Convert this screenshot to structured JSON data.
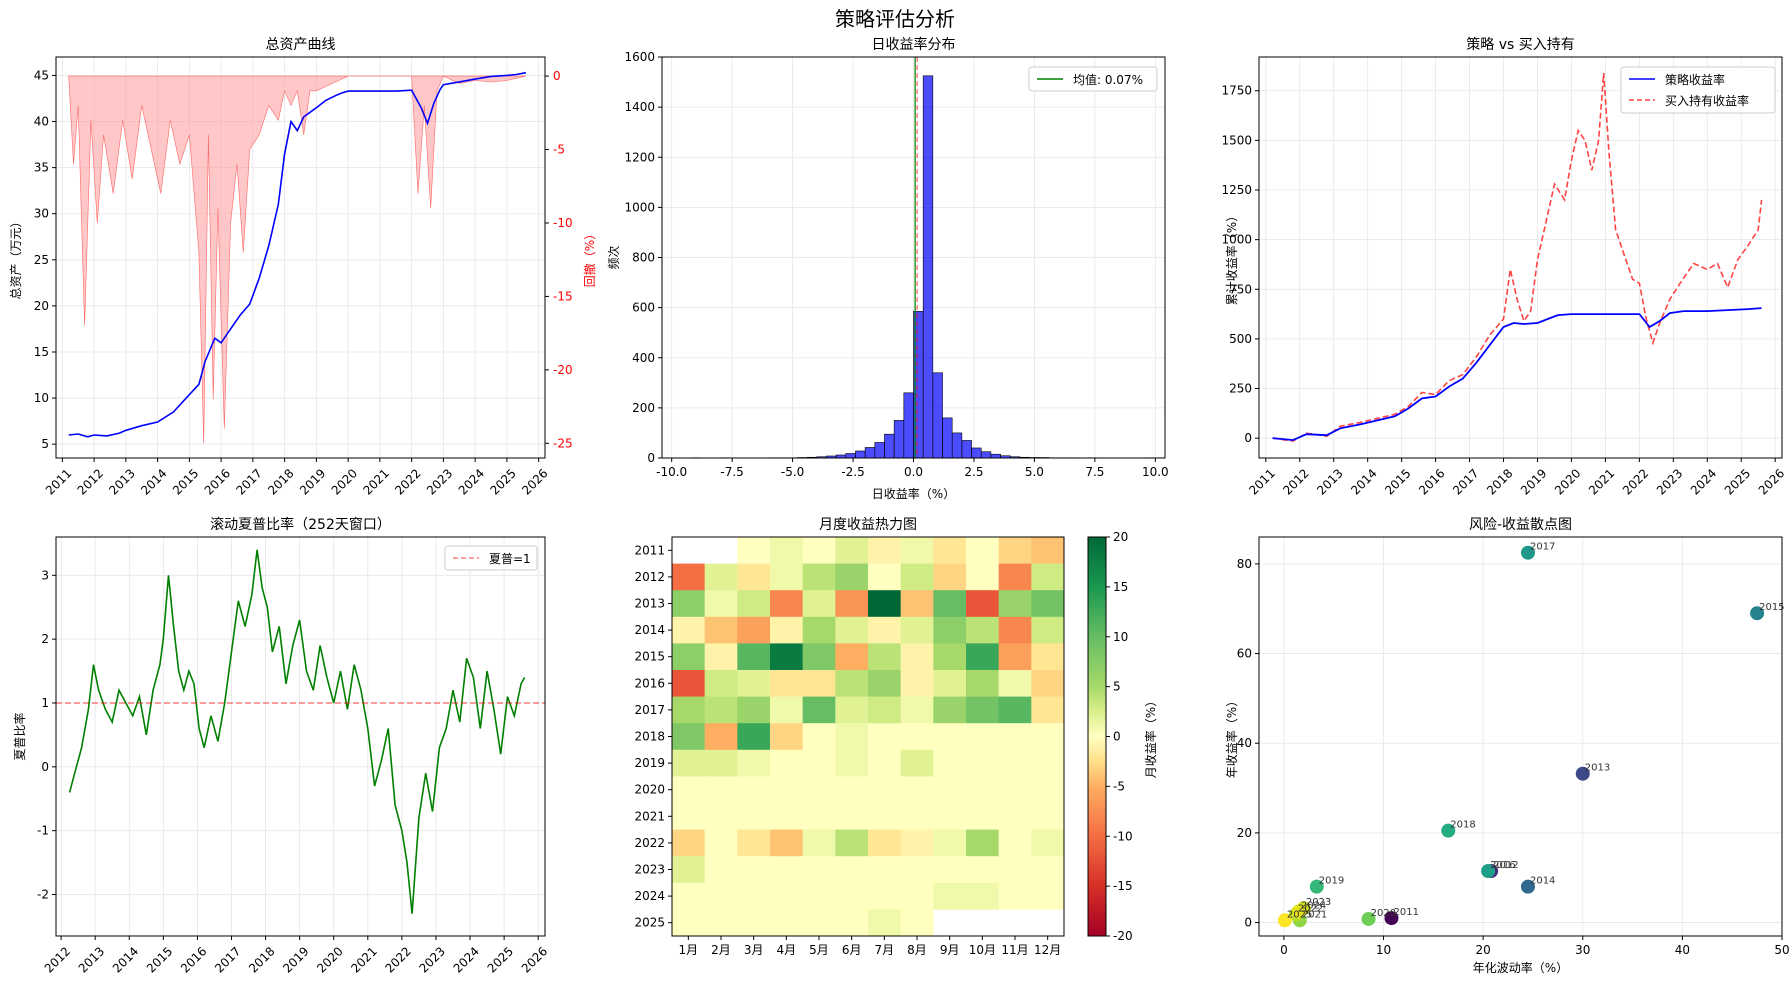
{
  "figure_title": "策略评估分析",
  "chart_data": [
    {
      "id": "equity",
      "type": "line",
      "title": "总资产曲线",
      "ylabel": "总资产（万元）",
      "y2label": "回撤（%）",
      "ylim": [
        3.5,
        47
      ],
      "y2lim": [
        -26,
        1.3
      ],
      "xlim": [
        2010.8,
        2026.2
      ],
      "xticks": [
        "2011",
        "2012",
        "2013",
        "2014",
        "2015",
        "2016",
        "2017",
        "2018",
        "2019",
        "2020",
        "2021",
        "2022",
        "2023",
        "2024",
        "2025",
        "2026"
      ],
      "yticks": [
        5,
        10,
        15,
        20,
        25,
        30,
        35,
        40,
        45
      ],
      "y2ticks": [
        0,
        -5,
        -10,
        -15,
        -20,
        -25
      ],
      "series": [
        {
          "color": "#0000ff",
          "x": [
            2011.2,
            2011.5,
            2011.8,
            2012.0,
            2012.4,
            2012.8,
            2013.0,
            2013.5,
            2014.0,
            2014.5,
            2014.9,
            2015.3,
            2015.5,
            2015.8,
            2016.0,
            2016.3,
            2016.6,
            2016.9,
            2017.2,
            2017.5,
            2017.8,
            2018.0,
            2018.2,
            2018.4,
            2018.6,
            2018.8,
            2019.0,
            2019.3,
            2019.6,
            2019.8,
            2020.0,
            2020.5,
            2021.0,
            2021.5,
            2022.0,
            2022.3,
            2022.5,
            2022.7,
            2022.9,
            2023.0,
            2023.5,
            2024.0,
            2024.5,
            2025.0,
            2025.3,
            2025.6
          ],
          "y": [
            6.0,
            6.1,
            5.8,
            6.0,
            5.9,
            6.2,
            6.5,
            7.0,
            7.4,
            8.5,
            10.0,
            11.5,
            14.0,
            16.5,
            16.0,
            17.5,
            19.0,
            20.2,
            23.0,
            26.5,
            31.0,
            36.5,
            40.0,
            39.0,
            40.5,
            41.0,
            41.5,
            42.3,
            42.8,
            43.1,
            43.3,
            43.3,
            43.3,
            43.3,
            43.4,
            41.5,
            39.8,
            42.0,
            43.5,
            44.0,
            44.3,
            44.6,
            44.9,
            45.0,
            45.1,
            45.3
          ]
        }
      ],
      "drawdown": {
        "color": "#ff9999",
        "x": [
          2011.2,
          2011.35,
          2011.5,
          2011.7,
          2011.9,
          2012.1,
          2012.3,
          2012.6,
          2012.9,
          2013.2,
          2013.5,
          2013.8,
          2014.1,
          2014.4,
          2014.7,
          2015.0,
          2015.3,
          2015.45,
          2015.6,
          2015.75,
          2015.9,
          2016.1,
          2016.3,
          2016.5,
          2016.7,
          2016.9,
          2017.2,
          2017.5,
          2017.8,
          2018.0,
          2018.2,
          2018.4,
          2018.6,
          2018.8,
          2019.0,
          2019.5,
          2020.0,
          2020.5,
          2021.0,
          2021.5,
          2022.0,
          2022.2,
          2022.4,
          2022.6,
          2022.8,
          2023.0,
          2023.5,
          2024.0,
          2024.5,
          2025.0,
          2025.6
        ],
        "y": [
          0,
          -6,
          -2,
          -17,
          -3,
          -10,
          -4,
          -8,
          -3,
          -7,
          -2,
          -5,
          -8,
          -3,
          -6,
          -4,
          -12,
          -25,
          -4,
          -22,
          -9,
          -24,
          -10,
          -6,
          -12,
          -5,
          -4,
          -2,
          -3,
          -1,
          -2,
          -1,
          -4,
          -1,
          -1,
          -0.5,
          0,
          0,
          0,
          0,
          0,
          -8,
          -2,
          -9,
          -1,
          0,
          -0.5,
          -0.3,
          -0.4,
          -0.3,
          0
        ]
      }
    },
    {
      "id": "hist",
      "type": "bar",
      "title": "日收益率分布",
      "xlabel": "日收益率（%）",
      "ylabel": "频次",
      "xlim": [
        -10.4,
        10.4
      ],
      "ylim": [
        0,
        1600
      ],
      "xticks": [
        "-10.0",
        "-7.5",
        "-5.0",
        "-2.5",
        "0.0",
        "2.5",
        "5.0",
        "7.5",
        "10.0"
      ],
      "yticks": [
        0,
        200,
        400,
        600,
        800,
        1000,
        1200,
        1400,
        1600
      ],
      "legend": "均值: 0.07%",
      "mean": 0.07,
      "bin_start": -10.0,
      "bin_width": 0.4,
      "values": [
        0,
        0,
        1,
        0,
        0,
        1,
        0,
        0,
        0,
        0,
        1,
        1,
        1,
        2,
        3,
        5,
        8,
        12,
        18,
        28,
        42,
        62,
        95,
        150,
        260,
        585,
        1525,
        340,
        160,
        100,
        70,
        40,
        25,
        15,
        9,
        5,
        3,
        2,
        2,
        1,
        1,
        1,
        0,
        1,
        0,
        0,
        0,
        0,
        0,
        1
      ]
    },
    {
      "id": "compare",
      "type": "line",
      "title": "策略 vs 买入持有",
      "ylabel": "累计收益率（%）",
      "xlim": [
        2010.8,
        2026.2
      ],
      "ylim": [
        -100,
        1920
      ],
      "xticks": [
        "2011",
        "2012",
        "2013",
        "2014",
        "2015",
        "2016",
        "2017",
        "2018",
        "2019",
        "2020",
        "2021",
        "2022",
        "2023",
        "2024",
        "2025",
        "2026"
      ],
      "yticks": [
        0,
        250,
        500,
        750,
        1000,
        1250,
        1500,
        1750
      ],
      "series": [
        {
          "name": "策略收益率",
          "color": "#0000ff",
          "x": [
            2011.2,
            2011.8,
            2012.2,
            2012.8,
            2013.2,
            2013.8,
            2014.3,
            2014.8,
            2015.2,
            2015.6,
            2016.0,
            2016.4,
            2016.8,
            2017.2,
            2017.6,
            2018.0,
            2018.3,
            2018.6,
            2019.0,
            2019.3,
            2019.6,
            2020.0,
            2020.5,
            2021.0,
            2021.5,
            2022.0,
            2022.3,
            2022.6,
            2022.9,
            2023.3,
            2024.0,
            2024.6,
            2025.2,
            2025.6
          ],
          "y": [
            0,
            -10,
            20,
            15,
            50,
            70,
            90,
            110,
            150,
            200,
            210,
            260,
            300,
            380,
            470,
            560,
            580,
            575,
            580,
            600,
            620,
            625,
            625,
            625,
            625,
            625,
            560,
            590,
            630,
            640,
            640,
            645,
            650,
            655
          ]
        },
        {
          "name": "买入持有收益率",
          "color": "#ff4444",
          "dashed": true,
          "x": [
            2011.2,
            2011.8,
            2012.2,
            2012.8,
            2013.2,
            2013.8,
            2014.3,
            2014.8,
            2015.2,
            2015.6,
            2016.0,
            2016.4,
            2016.8,
            2017.2,
            2017.6,
            2018.0,
            2018.2,
            2018.4,
            2018.6,
            2018.8,
            2019.0,
            2019.2,
            2019.5,
            2019.8,
            2020.0,
            2020.2,
            2020.4,
            2020.6,
            2020.8,
            2020.95,
            2021.1,
            2021.3,
            2021.5,
            2021.8,
            2022.0,
            2022.2,
            2022.4,
            2022.6,
            2022.9,
            2023.2,
            2023.6,
            2024.0,
            2024.3,
            2024.6,
            2024.9,
            2025.2,
            2025.5,
            2025.6
          ],
          "y": [
            0,
            -15,
            25,
            10,
            60,
            80,
            100,
            120,
            160,
            230,
            220,
            290,
            320,
            410,
            520,
            600,
            850,
            700,
            590,
            640,
            900,
            1050,
            1280,
            1200,
            1400,
            1550,
            1500,
            1350,
            1500,
            1840,
            1450,
            1050,
            950,
            800,
            780,
            600,
            480,
            580,
            700,
            780,
            880,
            850,
            880,
            760,
            900,
            970,
            1050,
            1200
          ]
        }
      ],
      "legend_position": "top-right"
    },
    {
      "id": "sharpe",
      "type": "line",
      "title": "滚动夏普比率（252天窗口）",
      "ylabel": "夏普比率",
      "legend": "夏普=1",
      "xlim": [
        2011.85,
        2026.2
      ],
      "ylim": [
        -2.65,
        3.6
      ],
      "xticks": [
        "2012",
        "2013",
        "2014",
        "2015",
        "2016",
        "2017",
        "2018",
        "2019",
        "2020",
        "2021",
        "2022",
        "2023",
        "2024",
        "2025",
        "2026"
      ],
      "yticks": [
        -2,
        -1,
        0,
        1,
        2,
        3
      ],
      "series": [
        {
          "color": "#008000",
          "x": [
            2012.25,
            2012.4,
            2012.6,
            2012.8,
            2012.95,
            2013.1,
            2013.3,
            2013.5,
            2013.7,
            2013.9,
            2014.1,
            2014.3,
            2014.5,
            2014.7,
            2014.9,
            2015.0,
            2015.15,
            2015.3,
            2015.45,
            2015.6,
            2015.75,
            2015.9,
            2016.05,
            2016.2,
            2016.4,
            2016.6,
            2016.8,
            2017.0,
            2017.2,
            2017.4,
            2017.6,
            2017.75,
            2017.9,
            2018.05,
            2018.2,
            2018.4,
            2018.6,
            2018.8,
            2019.0,
            2019.2,
            2019.4,
            2019.6,
            2019.8,
            2020.0,
            2020.2,
            2020.4,
            2020.6,
            2020.8,
            2021.0,
            2021.2,
            2021.4,
            2021.6,
            2021.8,
            2022.0,
            2022.15,
            2022.3,
            2022.5,
            2022.7,
            2022.9,
            2023.1,
            2023.3,
            2023.5,
            2023.7,
            2023.9,
            2024.1,
            2024.3,
            2024.5,
            2024.7,
            2024.9,
            2025.1,
            2025.3,
            2025.5,
            2025.6
          ],
          "y": [
            -0.4,
            -0.1,
            0.3,
            0.9,
            1.6,
            1.2,
            0.9,
            0.7,
            1.2,
            1.0,
            0.8,
            1.1,
            0.5,
            1.2,
            1.6,
            2.0,
            3.0,
            2.2,
            1.5,
            1.2,
            1.5,
            1.3,
            0.6,
            0.3,
            0.8,
            0.4,
            1.0,
            1.8,
            2.6,
            2.2,
            2.7,
            3.4,
            2.8,
            2.5,
            1.8,
            2.2,
            1.3,
            1.9,
            2.3,
            1.5,
            1.2,
            1.9,
            1.4,
            1.0,
            1.5,
            0.9,
            1.6,
            1.2,
            0.6,
            -0.3,
            0.1,
            0.6,
            -0.6,
            -1.0,
            -1.5,
            -2.3,
            -0.8,
            -0.1,
            -0.7,
            0.3,
            0.6,
            1.2,
            0.7,
            1.7,
            1.4,
            0.6,
            1.5,
            0.9,
            0.2,
            1.1,
            0.8,
            1.3,
            1.4
          ]
        }
      ]
    },
    {
      "id": "heatmap",
      "type": "heatmap",
      "title": "月度收益热力图",
      "colorbar_label": "月收益率（%）",
      "vmin": -20,
      "vmax": 20,
      "colorbar_ticks": [
        20,
        15,
        10,
        5,
        0,
        -5,
        -10,
        -15,
        -20
      ],
      "rows": [
        "2011",
        "2012",
        "2013",
        "2014",
        "2015",
        "2016",
        "2017",
        "2018",
        "2019",
        "2020",
        "2021",
        "2022",
        "2023",
        "2024",
        "2025"
      ],
      "cols": [
        "1月",
        "2月",
        "3月",
        "4月",
        "5月",
        "6月",
        "7月",
        "8月",
        "9月",
        "10月",
        "11月",
        "12月"
      ],
      "values": [
        [
          null,
          null,
          0,
          1,
          0,
          2,
          -1,
          1,
          -2,
          0,
          -3,
          -4
        ],
        [
          -10,
          2,
          -2,
          1,
          4,
          6,
          0,
          3,
          -3,
          0,
          -8,
          3
        ],
        [
          7,
          1,
          3,
          -8,
          2,
          -7,
          20,
          -4,
          10,
          -12,
          6,
          9
        ],
        [
          -1,
          -4,
          -6,
          -1,
          5,
          2,
          -1,
          2,
          7,
          4,
          -8,
          3
        ],
        [
          7,
          -1,
          11,
          18,
          8,
          -5,
          4,
          -1,
          5,
          13,
          -6,
          -2
        ],
        [
          -12,
          3,
          2,
          -2,
          -2,
          4,
          6,
          -1,
          2,
          5,
          1,
          -3
        ],
        [
          5,
          4,
          6,
          1,
          10,
          2,
          3,
          1,
          6,
          9,
          11,
          -2
        ],
        [
          8,
          -5,
          13,
          -3,
          0,
          1,
          0,
          0,
          0,
          0,
          0,
          0
        ],
        [
          2,
          2,
          1,
          0,
          0,
          1,
          0,
          2,
          0,
          0,
          0,
          0
        ],
        [
          0,
          0,
          0,
          0,
          0,
          0,
          0,
          0,
          0,
          0,
          0,
          0
        ],
        [
          0,
          0,
          0,
          0,
          0,
          0,
          0,
          0,
          0,
          0,
          0,
          0
        ],
        [
          -3,
          0,
          -2,
          -4,
          1,
          4,
          -2,
          -1,
          1,
          5,
          0,
          1
        ],
        [
          2,
          0,
          0,
          0,
          0,
          0,
          0,
          0,
          0,
          0,
          0,
          0
        ],
        [
          0,
          0,
          0,
          0,
          0,
          0,
          0,
          0,
          1,
          1,
          0,
          0
        ],
        [
          0,
          0,
          0,
          0,
          0,
          0,
          1,
          0,
          null,
          null,
          null,
          null
        ]
      ]
    },
    {
      "id": "scatter",
      "type": "scatter",
      "title": "风险-收益散点图",
      "xlabel": "年化波动率（%）",
      "ylabel": "年收益率（%）",
      "xlim": [
        -2.5,
        50
      ],
      "ylim": [
        -3,
        86
      ],
      "xticks": [
        0,
        10,
        20,
        30,
        40,
        50
      ],
      "yticks": [
        0,
        20,
        40,
        60,
        80
      ],
      "points": [
        {
          "label": "2011",
          "x": 10.8,
          "y": 1.0,
          "color": "#440154"
        },
        {
          "label": "2012",
          "x": 20.8,
          "y": 11.5,
          "color": "#482878"
        },
        {
          "label": "2013",
          "x": 30.0,
          "y": 33.2,
          "color": "#3e4989"
        },
        {
          "label": "2014",
          "x": 24.5,
          "y": 8.0,
          "color": "#31688e"
        },
        {
          "label": "2015",
          "x": 47.5,
          "y": 69.0,
          "color": "#26828e"
        },
        {
          "label": "2016",
          "x": 20.5,
          "y": 11.5,
          "color": "#1f9e89"
        },
        {
          "label": "2017",
          "x": 24.5,
          "y": 82.5,
          "color": "#1f988b"
        },
        {
          "label": "2018",
          "x": 16.5,
          "y": 20.5,
          "color": "#25ab82"
        },
        {
          "label": "2019",
          "x": 3.3,
          "y": 8.0,
          "color": "#35b779"
        },
        {
          "label": "2020",
          "x": 8.5,
          "y": 0.8,
          "color": "#6ece58"
        },
        {
          "label": "2021",
          "x": 1.6,
          "y": 0.5,
          "color": "#8fd744"
        },
        {
          "label": "2022",
          "x": 1.2,
          "y": 1.8,
          "color": "#b5de2b"
        },
        {
          "label": "2023",
          "x": 2.0,
          "y": 3.2,
          "color": "#d8e219"
        },
        {
          "label": "2024",
          "x": 1.5,
          "y": 2.5,
          "color": "#e5e419"
        },
        {
          "label": "2025",
          "x": 0.1,
          "y": 0.5,
          "color": "#fde725"
        }
      ]
    }
  ]
}
